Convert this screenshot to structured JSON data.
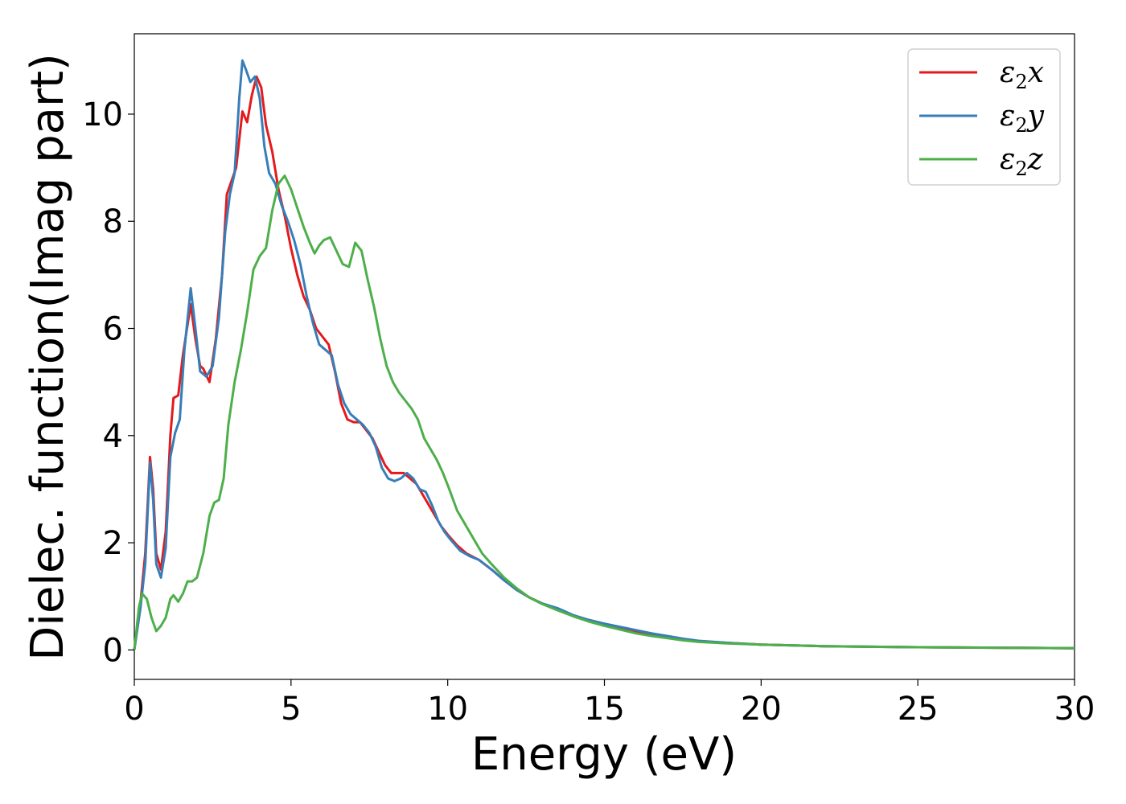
{
  "chart_data": {
    "type": "line",
    "title": "",
    "xlabel": "Energy (eV)",
    "ylabel": "Dielec. function(Imag part)",
    "xlim": [
      0,
      30
    ],
    "ylim": [
      -0.55,
      11.5
    ],
    "xticks": [
      0,
      5,
      10,
      15,
      20,
      25,
      30
    ],
    "yticks": [
      0,
      2,
      4,
      6,
      8,
      10
    ],
    "xtick_labels": [
      "0",
      "5",
      "10",
      "15",
      "20",
      "25",
      "30"
    ],
    "ytick_labels": [
      "0",
      "2",
      "4",
      "6",
      "8",
      "10"
    ],
    "grid": false,
    "legend_position": "top-right",
    "series": [
      {
        "name": "ε2x",
        "legend_symbol": "ε",
        "legend_sub": "2",
        "legend_var": "x",
        "color": "#e41a1c",
        "points": [
          [
            0,
            0
          ],
          [
            0.2,
            0.9
          ],
          [
            0.35,
            1.8
          ],
          [
            0.5,
            3.6
          ],
          [
            0.6,
            3.0
          ],
          [
            0.7,
            1.8
          ],
          [
            0.85,
            1.5
          ],
          [
            1.0,
            2.2
          ],
          [
            1.15,
            4.0
          ],
          [
            1.25,
            4.7
          ],
          [
            1.4,
            4.75
          ],
          [
            1.55,
            5.5
          ],
          [
            1.8,
            6.45
          ],
          [
            1.95,
            5.8
          ],
          [
            2.1,
            5.3
          ],
          [
            2.2,
            5.25
          ],
          [
            2.4,
            5.0
          ],
          [
            2.6,
            5.8
          ],
          [
            2.8,
            7.0
          ],
          [
            2.95,
            8.5
          ],
          [
            3.1,
            8.75
          ],
          [
            3.25,
            9.0
          ],
          [
            3.45,
            10.05
          ],
          [
            3.6,
            9.85
          ],
          [
            3.75,
            10.35
          ],
          [
            3.9,
            10.7
          ],
          [
            4.05,
            10.5
          ],
          [
            4.2,
            9.8
          ],
          [
            4.4,
            9.3
          ],
          [
            4.6,
            8.6
          ],
          [
            4.8,
            8.1
          ],
          [
            5.0,
            7.5
          ],
          [
            5.2,
            7.0
          ],
          [
            5.4,
            6.6
          ],
          [
            5.6,
            6.35
          ],
          [
            5.8,
            6.0
          ],
          [
            6.0,
            5.85
          ],
          [
            6.2,
            5.7
          ],
          [
            6.4,
            5.2
          ],
          [
            6.6,
            4.6
          ],
          [
            6.8,
            4.3
          ],
          [
            7.0,
            4.25
          ],
          [
            7.2,
            4.25
          ],
          [
            7.4,
            4.1
          ],
          [
            7.6,
            3.95
          ],
          [
            7.8,
            3.7
          ],
          [
            8.0,
            3.45
          ],
          [
            8.2,
            3.3
          ],
          [
            8.4,
            3.3
          ],
          [
            8.6,
            3.3
          ],
          [
            8.8,
            3.2
          ],
          [
            9.0,
            3.1
          ],
          [
            9.2,
            2.9
          ],
          [
            9.4,
            2.7
          ],
          [
            9.6,
            2.5
          ],
          [
            9.8,
            2.3
          ],
          [
            10.0,
            2.15
          ],
          [
            10.3,
            1.95
          ],
          [
            10.6,
            1.8
          ],
          [
            11.0,
            1.68
          ],
          [
            11.4,
            1.5
          ],
          [
            11.8,
            1.3
          ],
          [
            12.2,
            1.12
          ],
          [
            12.6,
            0.98
          ],
          [
            13.0,
            0.87
          ],
          [
            13.5,
            0.76
          ],
          [
            14.0,
            0.63
          ],
          [
            14.5,
            0.54
          ],
          [
            15.0,
            0.47
          ],
          [
            15.5,
            0.42
          ],
          [
            16.0,
            0.35
          ],
          [
            16.5,
            0.29
          ],
          [
            17.0,
            0.24
          ],
          [
            17.5,
            0.2
          ],
          [
            18.0,
            0.16
          ],
          [
            19.0,
            0.13
          ],
          [
            20.0,
            0.1
          ],
          [
            22.0,
            0.07
          ],
          [
            25.0,
            0.05
          ],
          [
            28.0,
            0.04
          ],
          [
            30.0,
            0.03
          ]
        ]
      },
      {
        "name": "ε2y",
        "legend_symbol": "ε",
        "legend_sub": "2",
        "legend_var": "y",
        "color": "#377eb8",
        "points": [
          [
            0,
            0
          ],
          [
            0.2,
            0.8
          ],
          [
            0.35,
            1.6
          ],
          [
            0.5,
            3.5
          ],
          [
            0.6,
            2.8
          ],
          [
            0.7,
            1.6
          ],
          [
            0.85,
            1.35
          ],
          [
            1.0,
            1.9
          ],
          [
            1.15,
            3.6
          ],
          [
            1.3,
            4.05
          ],
          [
            1.45,
            4.3
          ],
          [
            1.6,
            5.6
          ],
          [
            1.8,
            6.75
          ],
          [
            1.95,
            6.0
          ],
          [
            2.1,
            5.2
          ],
          [
            2.3,
            5.1
          ],
          [
            2.5,
            5.3
          ],
          [
            2.7,
            6.2
          ],
          [
            2.9,
            7.8
          ],
          [
            3.05,
            8.5
          ],
          [
            3.2,
            8.9
          ],
          [
            3.35,
            10.3
          ],
          [
            3.45,
            11.0
          ],
          [
            3.55,
            10.85
          ],
          [
            3.7,
            10.6
          ],
          [
            3.85,
            10.7
          ],
          [
            4.0,
            10.3
          ],
          [
            4.15,
            9.4
          ],
          [
            4.3,
            8.9
          ],
          [
            4.5,
            8.7
          ],
          [
            4.7,
            8.3
          ],
          [
            4.9,
            8.0
          ],
          [
            5.1,
            7.65
          ],
          [
            5.3,
            7.2
          ],
          [
            5.5,
            6.6
          ],
          [
            5.7,
            6.1
          ],
          [
            5.9,
            5.7
          ],
          [
            6.1,
            5.6
          ],
          [
            6.3,
            5.5
          ],
          [
            6.5,
            4.95
          ],
          [
            6.7,
            4.6
          ],
          [
            6.9,
            4.4
          ],
          [
            7.1,
            4.3
          ],
          [
            7.3,
            4.2
          ],
          [
            7.5,
            4.05
          ],
          [
            7.7,
            3.8
          ],
          [
            7.9,
            3.4
          ],
          [
            8.1,
            3.2
          ],
          [
            8.3,
            3.15
          ],
          [
            8.5,
            3.2
          ],
          [
            8.7,
            3.3
          ],
          [
            8.9,
            3.2
          ],
          [
            9.1,
            3.0
          ],
          [
            9.3,
            2.95
          ],
          [
            9.5,
            2.7
          ],
          [
            9.7,
            2.4
          ],
          [
            9.9,
            2.2
          ],
          [
            10.1,
            2.05
          ],
          [
            10.4,
            1.85
          ],
          [
            10.7,
            1.75
          ],
          [
            11.0,
            1.68
          ],
          [
            11.4,
            1.5
          ],
          [
            11.8,
            1.3
          ],
          [
            12.2,
            1.12
          ],
          [
            12.6,
            0.98
          ],
          [
            13.0,
            0.87
          ],
          [
            13.5,
            0.78
          ],
          [
            14.0,
            0.65
          ],
          [
            14.5,
            0.56
          ],
          [
            15.0,
            0.49
          ],
          [
            15.5,
            0.43
          ],
          [
            16.0,
            0.37
          ],
          [
            16.5,
            0.31
          ],
          [
            17.0,
            0.26
          ],
          [
            17.5,
            0.21
          ],
          [
            18.0,
            0.17
          ],
          [
            19.0,
            0.13
          ],
          [
            20.0,
            0.1
          ],
          [
            22.0,
            0.07
          ],
          [
            25.0,
            0.05
          ],
          [
            28.0,
            0.04
          ],
          [
            30.0,
            0.03
          ]
        ]
      },
      {
        "name": "ε2z",
        "legend_symbol": "ε",
        "legend_sub": "2",
        "legend_var": "z",
        "color": "#4daf4a",
        "points": [
          [
            0,
            0
          ],
          [
            0.15,
            0.8
          ],
          [
            0.25,
            1.05
          ],
          [
            0.4,
            0.95
          ],
          [
            0.55,
            0.6
          ],
          [
            0.7,
            0.35
          ],
          [
            0.85,
            0.45
          ],
          [
            1.0,
            0.6
          ],
          [
            1.15,
            0.95
          ],
          [
            1.25,
            1.02
          ],
          [
            1.4,
            0.9
          ],
          [
            1.55,
            1.05
          ],
          [
            1.7,
            1.28
          ],
          [
            1.85,
            1.28
          ],
          [
            2.0,
            1.35
          ],
          [
            2.2,
            1.8
          ],
          [
            2.4,
            2.5
          ],
          [
            2.55,
            2.75
          ],
          [
            2.7,
            2.8
          ],
          [
            2.85,
            3.2
          ],
          [
            3.0,
            4.2
          ],
          [
            3.2,
            5.0
          ],
          [
            3.4,
            5.6
          ],
          [
            3.6,
            6.3
          ],
          [
            3.8,
            7.1
          ],
          [
            4.0,
            7.35
          ],
          [
            4.2,
            7.5
          ],
          [
            4.4,
            8.2
          ],
          [
            4.6,
            8.7
          ],
          [
            4.8,
            8.85
          ],
          [
            5.0,
            8.6
          ],
          [
            5.2,
            8.25
          ],
          [
            5.4,
            7.9
          ],
          [
            5.6,
            7.6
          ],
          [
            5.75,
            7.4
          ],
          [
            5.9,
            7.55
          ],
          [
            6.05,
            7.65
          ],
          [
            6.25,
            7.7
          ],
          [
            6.45,
            7.45
          ],
          [
            6.65,
            7.2
          ],
          [
            6.85,
            7.15
          ],
          [
            7.05,
            7.6
          ],
          [
            7.25,
            7.45
          ],
          [
            7.45,
            6.9
          ],
          [
            7.65,
            6.4
          ],
          [
            7.85,
            5.8
          ],
          [
            8.05,
            5.3
          ],
          [
            8.25,
            5.0
          ],
          [
            8.45,
            4.8
          ],
          [
            8.65,
            4.65
          ],
          [
            8.85,
            4.5
          ],
          [
            9.05,
            4.3
          ],
          [
            9.25,
            3.95
          ],
          [
            9.45,
            3.75
          ],
          [
            9.65,
            3.55
          ],
          [
            9.85,
            3.3
          ],
          [
            10.05,
            3.0
          ],
          [
            10.3,
            2.6
          ],
          [
            10.55,
            2.35
          ],
          [
            10.8,
            2.1
          ],
          [
            11.1,
            1.8
          ],
          [
            11.4,
            1.6
          ],
          [
            11.8,
            1.35
          ],
          [
            12.2,
            1.15
          ],
          [
            12.6,
            0.98
          ],
          [
            13.0,
            0.86
          ],
          [
            13.5,
            0.74
          ],
          [
            14.0,
            0.63
          ],
          [
            14.5,
            0.53
          ],
          [
            15.0,
            0.45
          ],
          [
            15.5,
            0.38
          ],
          [
            16.0,
            0.31
          ],
          [
            16.5,
            0.26
          ],
          [
            17.0,
            0.22
          ],
          [
            17.5,
            0.18
          ],
          [
            18.0,
            0.15
          ],
          [
            19.0,
            0.12
          ],
          [
            20.0,
            0.1
          ],
          [
            22.0,
            0.07
          ],
          [
            25.0,
            0.05
          ],
          [
            28.0,
            0.04
          ],
          [
            30.0,
            0.03
          ]
        ]
      }
    ]
  }
}
